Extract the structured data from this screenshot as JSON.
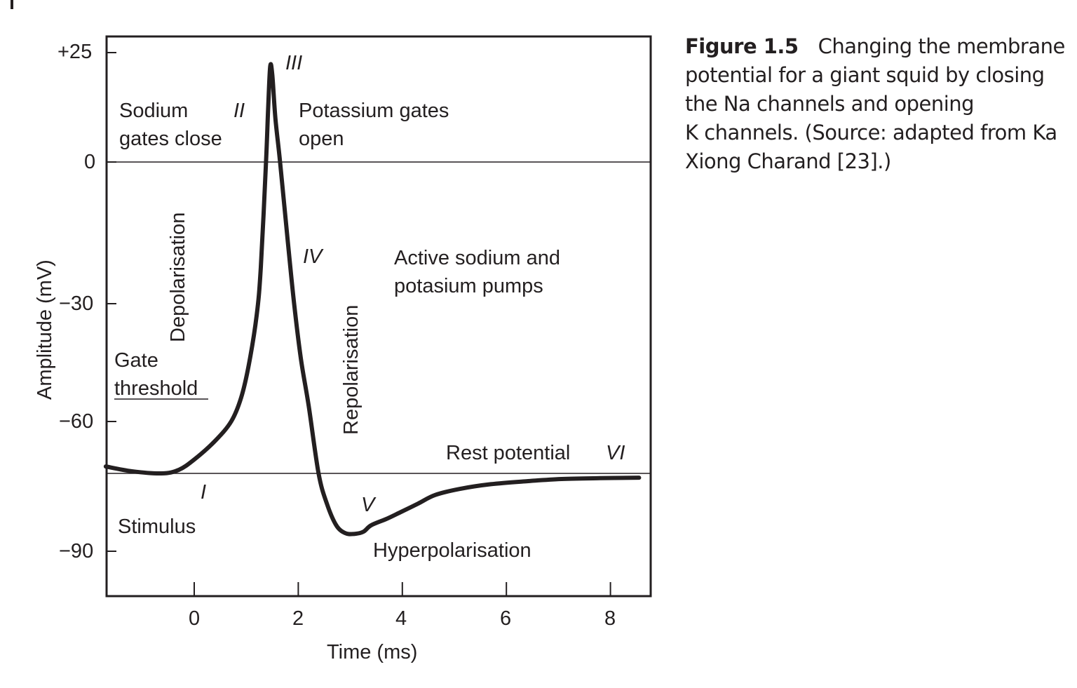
{
  "chart_data": {
    "type": "line",
    "title": "",
    "xlabel": "Time (ms)",
    "ylabel": "Amplitude (mV)",
    "xlim": [
      -1.7,
      8.8
    ],
    "ylim": [
      -100,
      28
    ],
    "x_ticks": [
      0,
      2,
      4,
      6,
      8
    ],
    "x_tick_labels": [
      "0",
      "2",
      "4",
      "6",
      "8"
    ],
    "y_ticks": [
      25,
      0,
      -30,
      -60,
      -90
    ],
    "y_tick_labels": [
      "+25",
      "0",
      "−30",
      "−60",
      "−90"
    ],
    "grid": false,
    "reference_lines": [
      0,
      -72
    ],
    "series": [
      {
        "color": "#231f20",
        "x": [
          -1.7,
          -1.2,
          -0.63,
          -0.3,
          0,
          0.4,
          0.71,
          0.9,
          1.05,
          1.2,
          1.28,
          1.38,
          1.42,
          1.46,
          1.5,
          1.56,
          1.65,
          1.8,
          1.92,
          2.05,
          2.2,
          2.39,
          2.55,
          2.73,
          2.9,
          3.07,
          3.25,
          3.4,
          3.7,
          3.96,
          4.3,
          4.63,
          5.1,
          5.7,
          6.4,
          7.06,
          7.8,
          8.55
        ],
        "y": [
          -70.4,
          -71.5,
          -72,
          -71.2,
          -68.8,
          -64.5,
          -60,
          -54,
          -45.5,
          -33,
          -22.3,
          0,
          12,
          21.8,
          20,
          10,
          0,
          -17,
          -30,
          -44,
          -56,
          -72,
          -79,
          -84,
          -85.8,
          -86,
          -85.5,
          -84,
          -82.5,
          -81,
          -79,
          -77,
          -75.6,
          -74.5,
          -73.8,
          -73.3,
          -73.1,
          -73
        ]
      }
    ],
    "annotations": {
      "stage_i": "I",
      "stage_ii": "II",
      "stage_iii": "III",
      "stage_iv": "IV",
      "stage_v": "V",
      "stage_vi": "VI",
      "sodium_line1": "Sodium",
      "sodium_line2": "gates close",
      "potassium_line1": "Potassium gates",
      "potassium_line2": "open",
      "depolarisation": "Depolarisation",
      "repolarisation": "Repolarisation",
      "pumps_line1": "Active sodium and",
      "pumps_line2": "potasium pumps",
      "gate_line1": "Gate",
      "gate_line2": "threshold",
      "rest": "Rest potential",
      "stimulus": "Stimulus",
      "hyper": "Hyperpolarisation"
    }
  },
  "caption": {
    "label": "Figure 1.5",
    "text_lines": [
      "Changing the membrane",
      "potential for a giant squid by closing",
      "the Na channels and opening",
      "K channels. (Source: adapted from Ka",
      "Xiong Charand [23].)"
    ]
  }
}
